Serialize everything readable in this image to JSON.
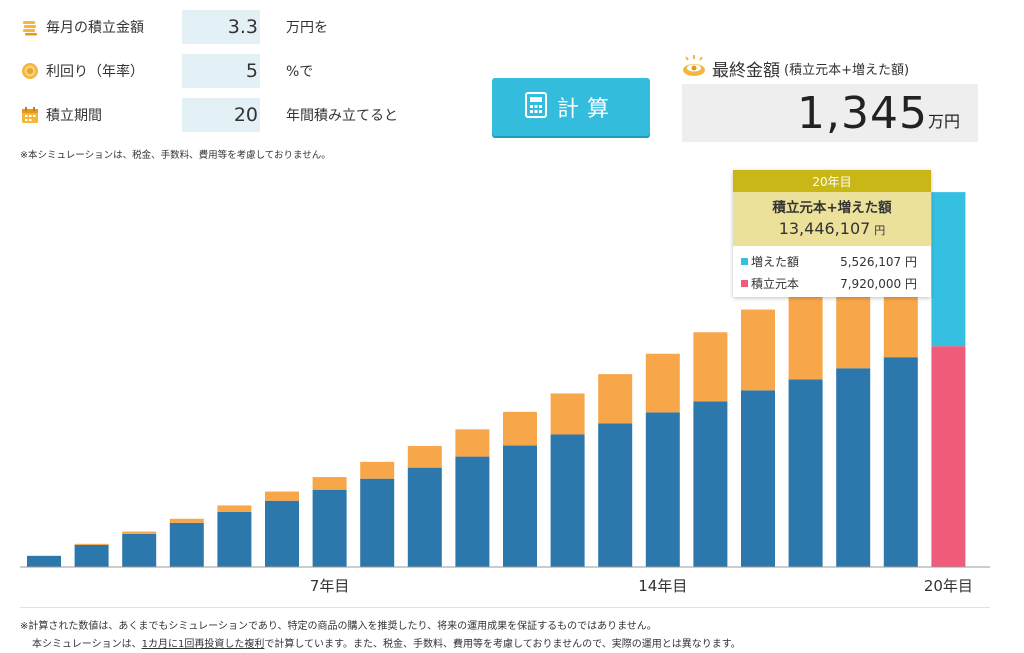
{
  "inputs": [
    {
      "label": "毎月の積立金額",
      "value": "3.3",
      "unit": "万円を",
      "icon": "coin-stack-icon"
    },
    {
      "label": "利回り（年率）",
      "value": "5",
      "unit": "%で",
      "icon": "coin-icon"
    },
    {
      "label": "積立期間",
      "value": "20",
      "unit": "年間積み立てると",
      "icon": "calendar-icon"
    }
  ],
  "note_top": "※本シミュレーションは、税金、手数料、費用等を考慮しておりません。",
  "calc_button": {
    "label": "計算",
    "icon": "calculator-icon"
  },
  "final": {
    "title": "最終金額",
    "subtitle": "(積立元本+増えた額)",
    "amount": "1,345",
    "unit": "万円",
    "icon": "coin-eye-icon"
  },
  "tooltip": {
    "year": "20年目",
    "title": "積立元本+増えた額",
    "total": "13,446,107",
    "total_unit": "円",
    "rows": [
      {
        "name": "増えた額",
        "value": "5,526,107 円",
        "color": "#35c0e2"
      },
      {
        "name": "積立元本",
        "value": "7,920,000 円",
        "color": "#ef5b7a"
      }
    ]
  },
  "colors": {
    "principal": "#2c77ac",
    "gain": "#f8a64a",
    "principal_highlight": "#ef5b7a",
    "gain_highlight": "#35c0e2",
    "accent": "#33bcdc"
  },
  "chart_data": {
    "type": "bar",
    "stacked": true,
    "categories": [
      "1",
      "2",
      "3",
      "4",
      "5",
      "6",
      "7",
      "8",
      "9",
      "10",
      "11",
      "12",
      "13",
      "14",
      "15",
      "16",
      "17",
      "18",
      "19",
      "20"
    ],
    "tick_labels": {
      "7": "7年目",
      "14": "14年目",
      "20": "20年目"
    },
    "series": [
      {
        "name": "積立元本",
        "values": [
          39.6,
          79.2,
          118.8,
          158.4,
          198.0,
          237.6,
          277.2,
          316.8,
          356.4,
          396.0,
          435.6,
          475.2,
          514.8,
          554.4,
          594.0,
          633.6,
          673.2,
          712.8,
          752.4,
          792.0
        ]
      },
      {
        "name": "増えた額",
        "values": [
          1.2,
          4.0,
          8.4,
          14.6,
          22.8,
          33.0,
          45.4,
          60.2,
          77.6,
          97.8,
          120.9,
          147.2,
          177.0,
          210.4,
          248.0,
          289.8,
          336.0,
          387.0,
          443.0,
          552.6
        ]
      }
    ],
    "highlight_index": 19,
    "ylim": [
      0,
      1345
    ]
  },
  "footnotes": {
    "line1": "※計算された数値は、あくまでもシミュレーションであり、特定の商品の購入を推奨したり、将来の運用成果を保証するものではありません。",
    "line2_pre": "本シミュレーションは、",
    "line2_u1": "1カ月に1回再投資した",
    "line2_u2": "複利",
    "line2_post": "で計算しています。また、税金、手数料、費用等を考慮しておりませんので、実際の運用とは異なります。"
  }
}
